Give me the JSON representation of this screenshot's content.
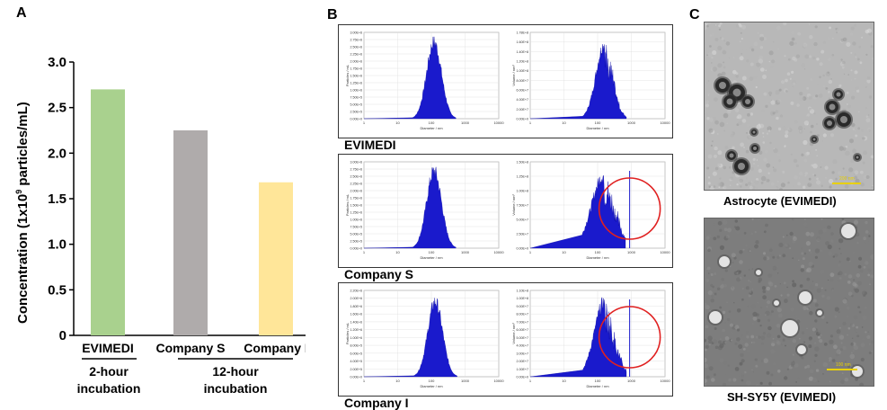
{
  "panels": {
    "a": "A",
    "b": "B",
    "c": "C"
  },
  "chart_data": [
    {
      "type": "bar",
      "ylabel": "Concentration (1x10",
      "ylabel_sup": "9",
      "ylabel_tail": " particles/mL)",
      "ylim": [
        0,
        3.0
      ],
      "yticks": [
        "0",
        "0.5",
        "1.0",
        "1.5",
        "2.0",
        "2.5",
        "3.0"
      ],
      "categories": [
        "EVIMEDI",
        "Company S",
        "Company I"
      ],
      "values": [
        2.7,
        2.25,
        1.68
      ],
      "colors": [
        "#a9d18e",
        "#afabab",
        "#ffe699"
      ],
      "groups": [
        {
          "line1": "2-hour",
          "line2": "incubation"
        },
        {
          "line1": "12-hour",
          "line2": "incubation"
        }
      ]
    },
    {
      "type": "area",
      "xlabel": "Diameter / nm",
      "ylabel_left": "Particles / mL",
      "ylabel_right": "Volume / nm³",
      "xticks": [
        "1",
        "10",
        "100",
        "1000",
        "10000"
      ],
      "rows": [
        {
          "label": "EVIMEDI",
          "left_yticks": [
            "0.00E+0",
            "2.50E+5",
            "5.00E+5",
            "7.50E+5",
            "1.00E+6",
            "1.25E+6",
            "1.50E+6",
            "1.75E+6",
            "2.00E+6",
            "2.25E+6",
            "2.50E+6",
            "2.75E+6",
            "3.00E+6"
          ],
          "right_yticks": [
            "0.00E+0",
            "2.00E+7",
            "4.00E+7",
            "6.00E+7",
            "8.00E+7",
            "1.00E+8",
            "1.20E+8",
            "1.40E+8",
            "1.60E+8",
            "1.78E+8"
          ],
          "left_peak_nm": 120,
          "left_peak_frac": 0.97,
          "left_width": 0.22,
          "right_peak_nm": 160,
          "right_peak_frac": 0.95,
          "right_width": 0.25,
          "circle": false
        },
        {
          "label": "Company S",
          "left_yticks": [
            "0.00E+0",
            "2.50E+5",
            "5.00E+5",
            "7.50E+5",
            "1.00E+6",
            "1.25E+6",
            "1.50E+6",
            "1.75E+6",
            "2.00E+6",
            "2.25E+6",
            "2.50E+6",
            "2.75E+6",
            "3.00E+6"
          ],
          "right_yticks": [
            "0.00E+0",
            "2.50E+7",
            "5.00E+7",
            "7.50E+7",
            "1.00E+8",
            "1.25E+8",
            "1.50E+8"
          ],
          "left_peak_nm": 120,
          "left_peak_frac": 0.98,
          "left_width": 0.22,
          "right_peak_nm": 150,
          "right_peak_frac": 0.92,
          "right_width": 0.35,
          "circle": true
        },
        {
          "label": "Company I",
          "left_yticks": [
            "0.00E+0",
            "2.00E+5",
            "4.00E+5",
            "6.00E+5",
            "8.00E+5",
            "1.00E+6",
            "1.20E+6",
            "1.40E+6",
            "1.60E+6",
            "1.80E+6",
            "2.00E+6",
            "2.20E+6"
          ],
          "right_yticks": [
            "0.00E+0",
            "1.00E+7",
            "2.00E+7",
            "3.00E+7",
            "4.00E+7",
            "5.00E+7",
            "6.00E+7",
            "7.00E+7",
            "8.00E+7",
            "9.00E+7",
            "1.00E+8",
            "1.10E+8"
          ],
          "left_peak_nm": 130,
          "left_peak_frac": 0.95,
          "left_width": 0.22,
          "right_peak_nm": 160,
          "right_peak_frac": 0.95,
          "right_width": 0.3,
          "circle": true
        }
      ]
    }
  ],
  "tem": {
    "top_caption": "Astrocyte (EVIMEDI)",
    "top_scale": "200 nm",
    "bottom_caption": "SH-SY5Y (EVIMEDI)",
    "bottom_scale": "100 nm"
  }
}
